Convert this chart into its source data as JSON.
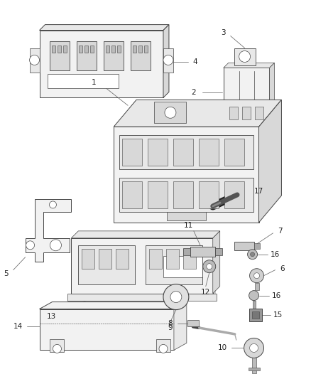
{
  "background_color": "#ffffff",
  "line_color": "#444444",
  "fig_width": 4.38,
  "fig_height": 5.33,
  "dpi": 100
}
